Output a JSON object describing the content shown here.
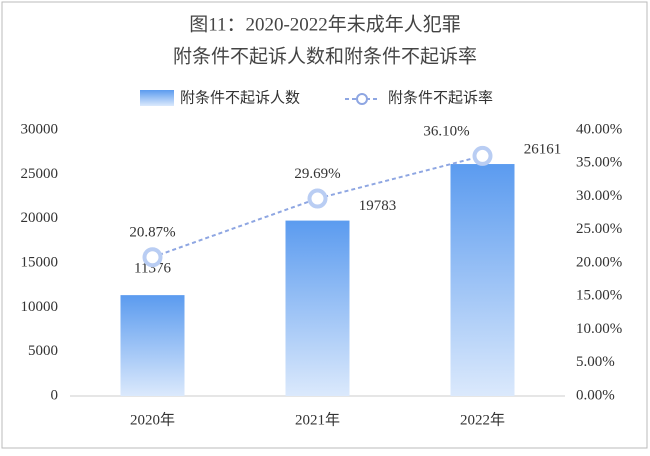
{
  "chart_data": {
    "type": "bar",
    "title": "图11：2020-2022年未成年人犯罪",
    "subtitle": "附条件不起诉人数和附条件不起诉率",
    "categories": [
      "2020年",
      "2021年",
      "2022年"
    ],
    "series": [
      {
        "name": "附条件不起诉人数",
        "type": "bar",
        "color": "#5b9bef",
        "values": [
          11376,
          19783,
          26161
        ]
      },
      {
        "name": "附条件不起诉率",
        "type": "line",
        "axis": "y2",
        "color": "#8ea6e2",
        "values": [
          20.87,
          29.69,
          36.1
        ],
        "value_labels": [
          "20.87%",
          "29.69%",
          "36.10%"
        ]
      }
    ],
    "ylim": [
      0,
      30000
    ],
    "yticks": [
      0,
      5000,
      10000,
      15000,
      20000,
      25000,
      30000
    ],
    "y2lim": [
      0,
      40
    ],
    "y2ticks": [
      {
        "value": 0,
        "label": "0.00%"
      },
      {
        "value": 5,
        "label": "5.00%"
      },
      {
        "value": 10,
        "label": "10.00%"
      },
      {
        "value": 15,
        "label": "15.00%"
      },
      {
        "value": 20,
        "label": "20.00%"
      },
      {
        "value": 25,
        "label": "25.00%"
      },
      {
        "value": 30,
        "label": "30.00%"
      },
      {
        "value": 35,
        "label": "35.00%"
      },
      {
        "value": 40,
        "label": "40.00%"
      }
    ],
    "grid": false
  }
}
